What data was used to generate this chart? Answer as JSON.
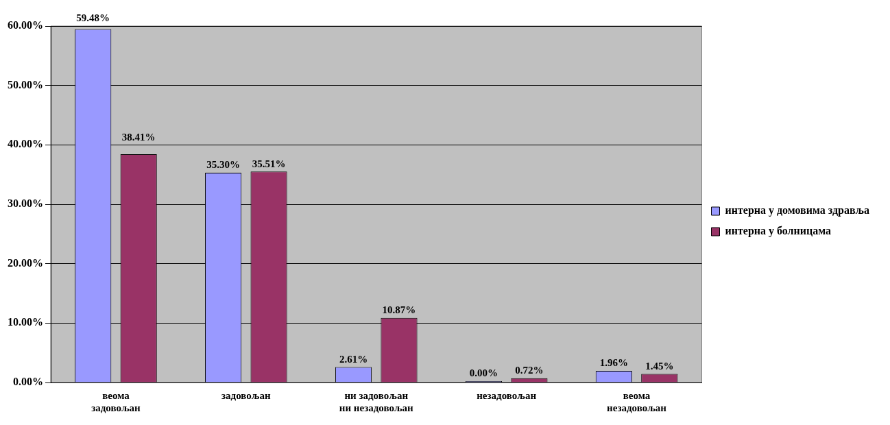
{
  "chart_data": {
    "type": "bar",
    "categories": [
      "веома задовољан",
      "задовољан",
      "ни задовољан ни незадовољан",
      "незадовољан",
      "веома незадовољан"
    ],
    "series": [
      {
        "name": "интерна у домовима здравља",
        "color": "#9999ff",
        "values": [
          59.48,
          35.3,
          2.61,
          0.0,
          1.96
        ],
        "value_labels": [
          "59.48%",
          "35.30%",
          "2.61%",
          "0.00%",
          "1.96%"
        ]
      },
      {
        "name": "интерна у болницама",
        "color": "#993366",
        "values": [
          38.41,
          35.51,
          10.87,
          0.72,
          1.45
        ],
        "value_labels": [
          "38.41%",
          "35.51%",
          "10.87%",
          "0.72%",
          "1.45%"
        ]
      }
    ],
    "ylim": [
      0,
      60
    ],
    "yticks": [
      {
        "value": 0,
        "label": "0.00%"
      },
      {
        "value": 10,
        "label": "10.00%"
      },
      {
        "value": 20,
        "label": "20.00%"
      },
      {
        "value": 30,
        "label": "30.00%"
      },
      {
        "value": 40,
        "label": "40.00%"
      },
      {
        "value": 50,
        "label": "50.00%"
      },
      {
        "value": 60,
        "label": "60.00%"
      }
    ],
    "grid": "y",
    "legend": "right"
  }
}
